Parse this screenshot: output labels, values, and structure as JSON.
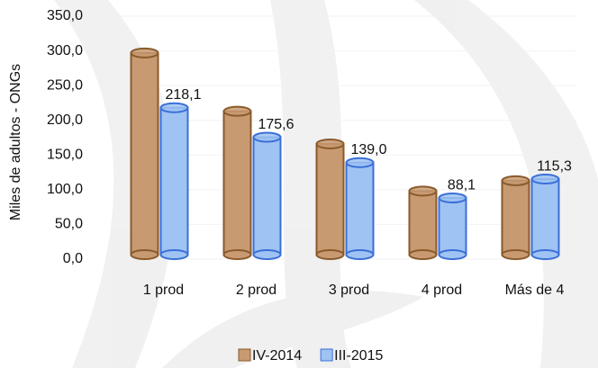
{
  "chart_data": {
    "type": "bar",
    "y_label": "Miles de adultos - ONGs",
    "categories": [
      "1 prod",
      "2 prod",
      "3 prod",
      "4 prod",
      "Más de 4"
    ],
    "series": [
      {
        "name": "IV-2014",
        "color": "#c89a72",
        "values": [
          297,
          213,
          166,
          98,
          113
        ]
      },
      {
        "name": "III-2015",
        "color": "#9fc3f2",
        "values": [
          218.1,
          175.6,
          139.0,
          88.1,
          115.3
        ],
        "value_labels": [
          "218,1",
          "175,6",
          "139,0",
          "88,1",
          "115,3"
        ]
      }
    ],
    "ylim": [
      0,
      350
    ],
    "yticks": [
      {
        "value": 0,
        "label": "0,0"
      },
      {
        "value": 50,
        "label": "50,0"
      },
      {
        "value": 100,
        "label": "100,0"
      },
      {
        "value": 150,
        "label": "150,0"
      },
      {
        "value": 200,
        "label": "200,0"
      },
      {
        "value": 250,
        "label": "250,0"
      },
      {
        "value": 300,
        "label": "300,0"
      },
      {
        "value": 350,
        "label": "350,0"
      }
    ],
    "legend": "bottom"
  }
}
